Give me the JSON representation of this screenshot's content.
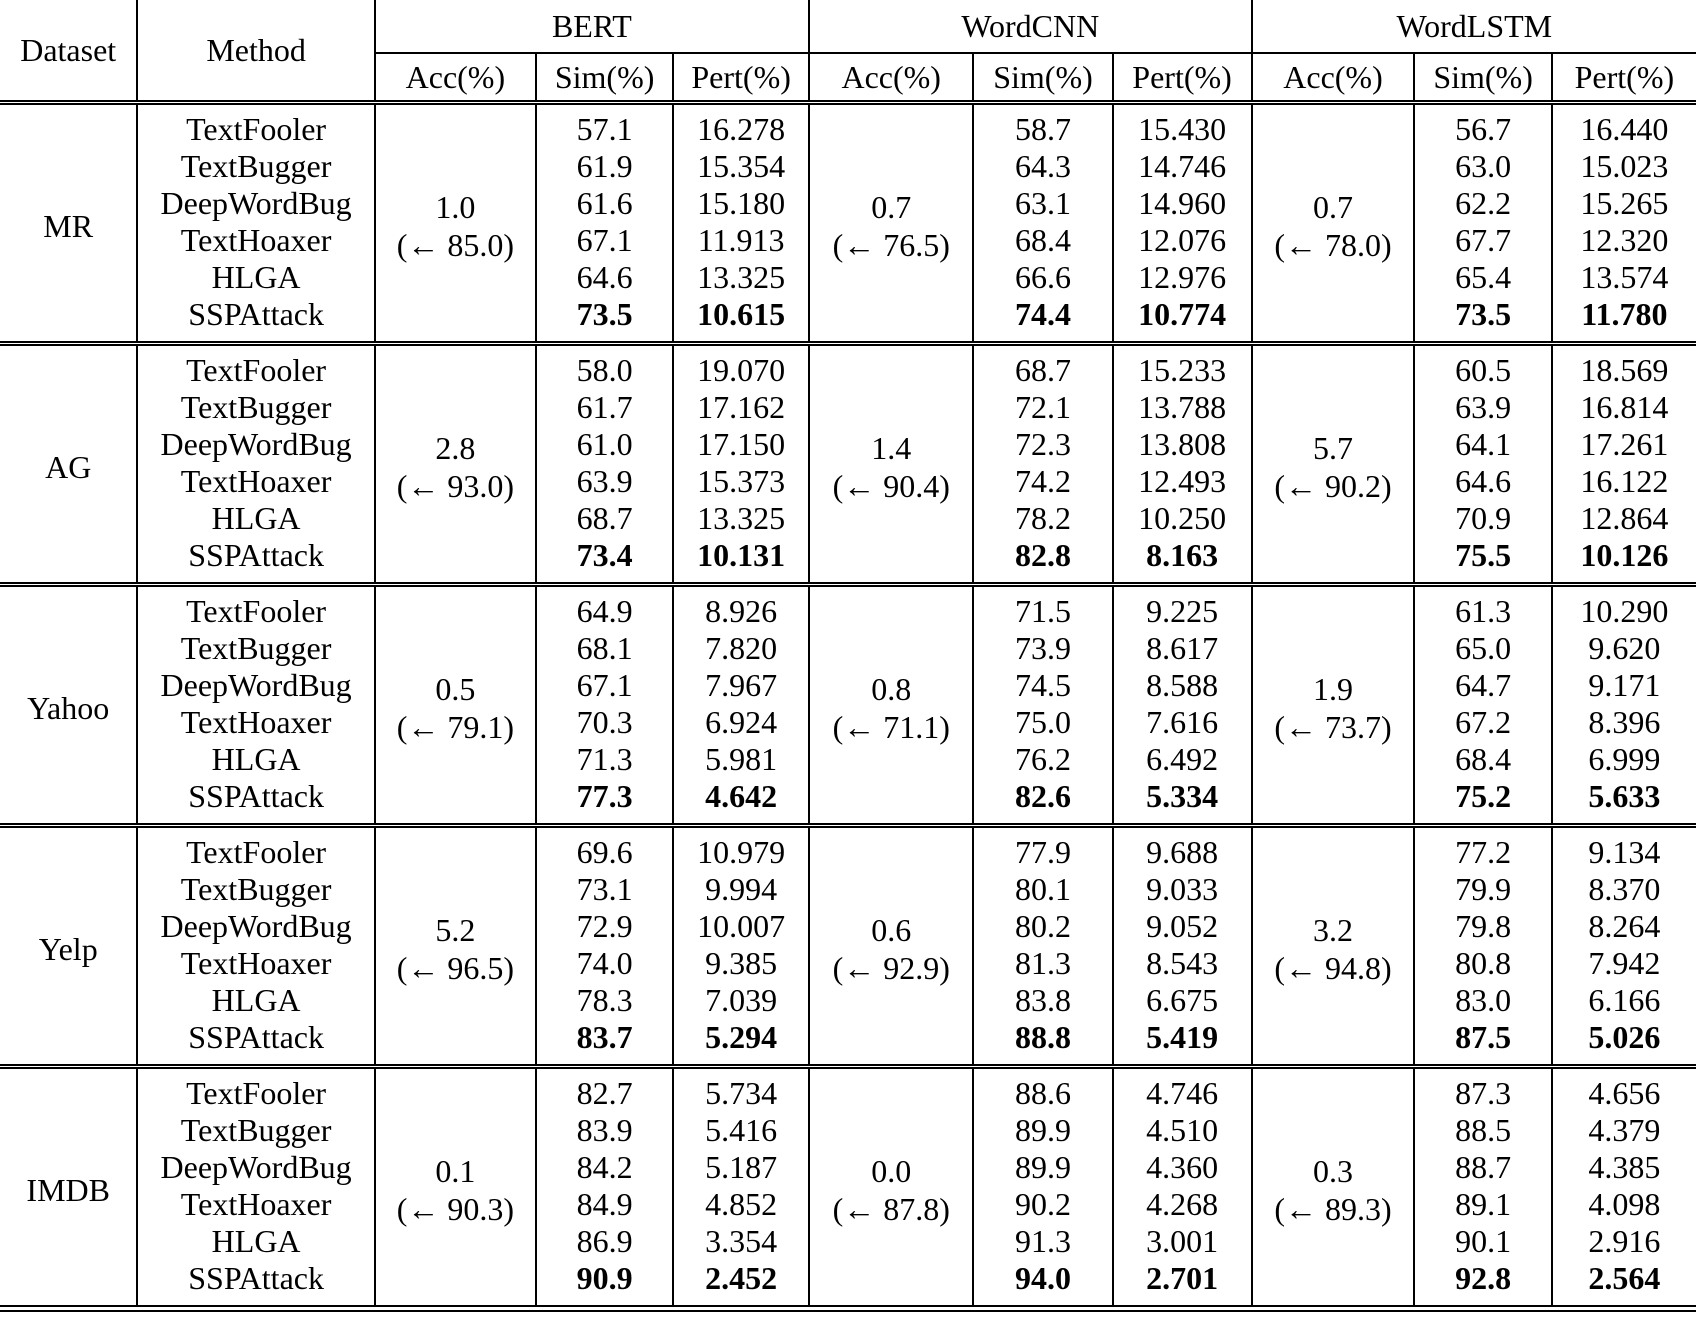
{
  "table": {
    "header": {
      "dataset": "Dataset",
      "method": "Method",
      "models": [
        "BERT",
        "WordCNN",
        "WordLSTM"
      ],
      "subcols": [
        "Acc(%)",
        "Sim(%)",
        "Pert(%)"
      ]
    },
    "datasets": [
      {
        "name": "MR",
        "acc": [
          {
            "after": "1.0",
            "from": "(← 85.0)"
          },
          {
            "after": "0.7",
            "from": "(← 76.5)"
          },
          {
            "after": "0.7",
            "from": "(← 78.0)"
          }
        ],
        "rows": [
          {
            "method": "TextFooler",
            "best": false,
            "values": [
              "57.1",
              "16.278",
              "58.7",
              "15.430",
              "56.7",
              "16.440"
            ]
          },
          {
            "method": "TextBugger",
            "best": false,
            "values": [
              "61.9",
              "15.354",
              "64.3",
              "14.746",
              "63.0",
              "15.023"
            ]
          },
          {
            "method": "DeepWordBug",
            "best": false,
            "values": [
              "61.6",
              "15.180",
              "63.1",
              "14.960",
              "62.2",
              "15.265"
            ]
          },
          {
            "method": "TextHoaxer",
            "best": false,
            "values": [
              "67.1",
              "11.913",
              "68.4",
              "12.076",
              "67.7",
              "12.320"
            ]
          },
          {
            "method": "HLGA",
            "best": false,
            "values": [
              "64.6",
              "13.325",
              "66.6",
              "12.976",
              "65.4",
              "13.574"
            ]
          },
          {
            "method": "SSPAttack",
            "best": true,
            "values": [
              "73.5",
              "10.615",
              "74.4",
              "10.774",
              "73.5",
              "11.780"
            ]
          }
        ]
      },
      {
        "name": "AG",
        "acc": [
          {
            "after": "2.8",
            "from": "(← 93.0)"
          },
          {
            "after": "1.4",
            "from": "(← 90.4)"
          },
          {
            "after": "5.7",
            "from": "(← 90.2)"
          }
        ],
        "rows": [
          {
            "method": "TextFooler",
            "best": false,
            "values": [
              "58.0",
              "19.070",
              "68.7",
              "15.233",
              "60.5",
              "18.569"
            ]
          },
          {
            "method": "TextBugger",
            "best": false,
            "values": [
              "61.7",
              "17.162",
              "72.1",
              "13.788",
              "63.9",
              "16.814"
            ]
          },
          {
            "method": "DeepWordBug",
            "best": false,
            "values": [
              "61.0",
              "17.150",
              "72.3",
              "13.808",
              "64.1",
              "17.261"
            ]
          },
          {
            "method": "TextHoaxer",
            "best": false,
            "values": [
              "63.9",
              "15.373",
              "74.2",
              "12.493",
              "64.6",
              "16.122"
            ]
          },
          {
            "method": "HLGA",
            "best": false,
            "values": [
              "68.7",
              "13.325",
              "78.2",
              "10.250",
              "70.9",
              "12.864"
            ]
          },
          {
            "method": "SSPAttack",
            "best": true,
            "values": [
              "73.4",
              "10.131",
              "82.8",
              "8.163",
              "75.5",
              "10.126"
            ]
          }
        ]
      },
      {
        "name": "Yahoo",
        "acc": [
          {
            "after": "0.5",
            "from": "(← 79.1)"
          },
          {
            "after": "0.8",
            "from": "(← 71.1)"
          },
          {
            "after": "1.9",
            "from": "(← 73.7)"
          }
        ],
        "rows": [
          {
            "method": "TextFooler",
            "best": false,
            "values": [
              "64.9",
              "8.926",
              "71.5",
              "9.225",
              "61.3",
              "10.290"
            ]
          },
          {
            "method": "TextBugger",
            "best": false,
            "values": [
              "68.1",
              "7.820",
              "73.9",
              "8.617",
              "65.0",
              "9.620"
            ]
          },
          {
            "method": "DeepWordBug",
            "best": false,
            "values": [
              "67.1",
              "7.967",
              "74.5",
              "8.588",
              "64.7",
              "9.171"
            ]
          },
          {
            "method": "TextHoaxer",
            "best": false,
            "values": [
              "70.3",
              "6.924",
              "75.0",
              "7.616",
              "67.2",
              "8.396"
            ]
          },
          {
            "method": "HLGA",
            "best": false,
            "values": [
              "71.3",
              "5.981",
              "76.2",
              "6.492",
              "68.4",
              "6.999"
            ]
          },
          {
            "method": "SSPAttack",
            "best": true,
            "values": [
              "77.3",
              "4.642",
              "82.6",
              "5.334",
              "75.2",
              "5.633"
            ]
          }
        ]
      },
      {
        "name": "Yelp",
        "acc": [
          {
            "after": "5.2",
            "from": "(← 96.5)"
          },
          {
            "after": "0.6",
            "from": "(← 92.9)"
          },
          {
            "after": "3.2",
            "from": "(← 94.8)"
          }
        ],
        "rows": [
          {
            "method": "TextFooler",
            "best": false,
            "values": [
              "69.6",
              "10.979",
              "77.9",
              "9.688",
              "77.2",
              "9.134"
            ]
          },
          {
            "method": "TextBugger",
            "best": false,
            "values": [
              "73.1",
              "9.994",
              "80.1",
              "9.033",
              "79.9",
              "8.370"
            ]
          },
          {
            "method": "DeepWordBug",
            "best": false,
            "values": [
              "72.9",
              "10.007",
              "80.2",
              "9.052",
              "79.8",
              "8.264"
            ]
          },
          {
            "method": "TextHoaxer",
            "best": false,
            "values": [
              "74.0",
              "9.385",
              "81.3",
              "8.543",
              "80.8",
              "7.942"
            ]
          },
          {
            "method": "HLGA",
            "best": false,
            "values": [
              "78.3",
              "7.039",
              "83.8",
              "6.675",
              "83.0",
              "6.166"
            ]
          },
          {
            "method": "SSPAttack",
            "best": true,
            "values": [
              "83.7",
              "5.294",
              "88.8",
              "5.419",
              "87.5",
              "5.026"
            ]
          }
        ]
      },
      {
        "name": "IMDB",
        "acc": [
          {
            "after": "0.1",
            "from": "(← 90.3)"
          },
          {
            "after": "0.0",
            "from": "(← 87.8)"
          },
          {
            "after": "0.3",
            "from": "(← 89.3)"
          }
        ],
        "rows": [
          {
            "method": "TextFooler",
            "best": false,
            "values": [
              "82.7",
              "5.734",
              "88.6",
              "4.746",
              "87.3",
              "4.656"
            ]
          },
          {
            "method": "TextBugger",
            "best": false,
            "values": [
              "83.9",
              "5.416",
              "89.9",
              "4.510",
              "88.5",
              "4.379"
            ]
          },
          {
            "method": "DeepWordBug",
            "best": false,
            "values": [
              "84.2",
              "5.187",
              "89.9",
              "4.360",
              "88.7",
              "4.385"
            ]
          },
          {
            "method": "TextHoaxer",
            "best": false,
            "values": [
              "84.9",
              "4.852",
              "90.2",
              "4.268",
              "89.1",
              "4.098"
            ]
          },
          {
            "method": "HLGA",
            "best": false,
            "values": [
              "86.9",
              "3.354",
              "91.3",
              "3.001",
              "90.1",
              "2.916"
            ]
          },
          {
            "method": "SSPAttack",
            "best": true,
            "values": [
              "90.9",
              "2.452",
              "94.0",
              "2.701",
              "92.8",
              "2.564"
            ]
          }
        ]
      }
    ]
  }
}
